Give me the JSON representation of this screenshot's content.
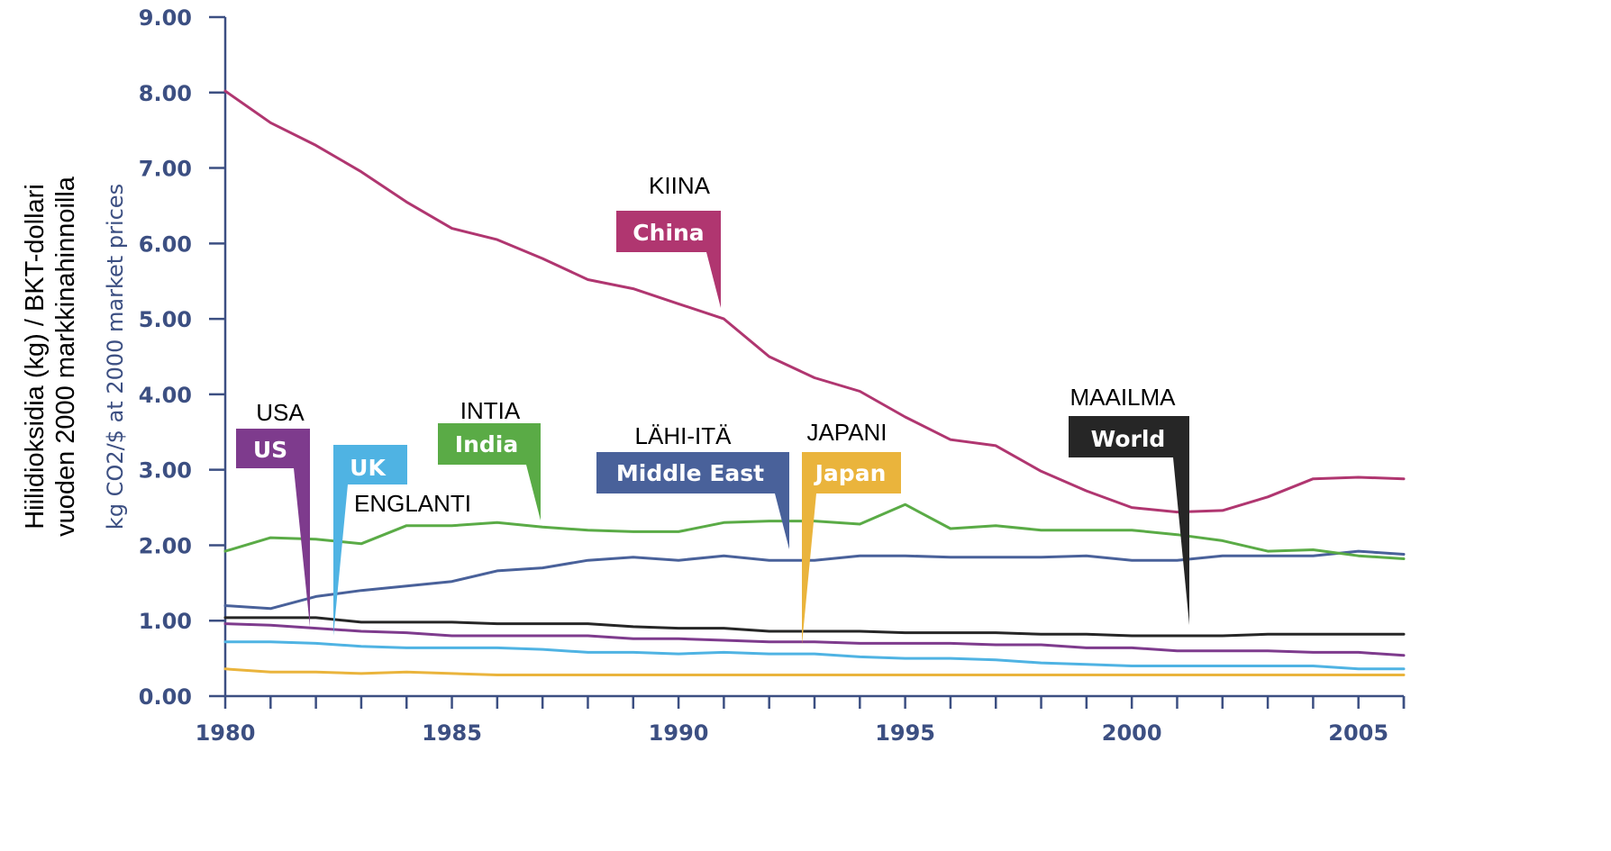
{
  "chart_data": {
    "type": "line",
    "ylabel": "kg CO2/$ at 2000 market prices",
    "ylabel_fi_line1": "Hiilidioksidia (kg) / BKT-dollari",
    "ylabel_fi_line2": "vuoden 2000 markkinahinnoilla",
    "ylim": [
      0,
      9
    ],
    "xlim": [
      1980,
      2006
    ],
    "yticks": [
      "0.00",
      "1.00",
      "2.00",
      "3.00",
      "4.00",
      "5.00",
      "6.00",
      "7.00",
      "8.00",
      "9.00"
    ],
    "xticks": [
      "1980",
      "1985",
      "1990",
      "1995",
      "2000",
      "2005"
    ],
    "grid": false,
    "x": [
      1980,
      1981,
      1982,
      1983,
      1984,
      1985,
      1986,
      1987,
      1988,
      1989,
      1990,
      1991,
      1992,
      1993,
      1994,
      1995,
      1996,
      1997,
      1998,
      1999,
      2000,
      2001,
      2002,
      2003,
      2004,
      2005,
      2006
    ],
    "series": [
      {
        "name": "China",
        "label_fi": "KIINA",
        "color": "#b03670",
        "values": [
          8.02,
          7.6,
          7.3,
          6.95,
          6.55,
          6.2,
          6.05,
          5.8,
          5.52,
          5.4,
          5.2,
          5.0,
          4.5,
          4.22,
          4.04,
          3.7,
          3.4,
          3.32,
          2.98,
          2.72,
          2.5,
          2.44,
          2.46,
          2.64,
          2.88,
          2.9,
          2.88
        ]
      },
      {
        "name": "India",
        "label_fi": "INTIA",
        "color": "#5aab46",
        "values": [
          1.92,
          2.1,
          2.08,
          2.02,
          2.26,
          2.26,
          2.3,
          2.24,
          2.2,
          2.18,
          2.18,
          2.3,
          2.32,
          2.32,
          2.28,
          2.54,
          2.22,
          2.26,
          2.2,
          2.2,
          2.2,
          2.14,
          2.06,
          1.92,
          1.94,
          1.86,
          1.82
        ]
      },
      {
        "name": "Middle East",
        "label_fi": "LÄHI-ITÄ",
        "color": "#49619a",
        "values": [
          1.2,
          1.16,
          1.32,
          1.4,
          1.46,
          1.52,
          1.66,
          1.7,
          1.8,
          1.84,
          1.8,
          1.86,
          1.8,
          1.8,
          1.86,
          1.86,
          1.84,
          1.84,
          1.84,
          1.86,
          1.8,
          1.8,
          1.86,
          1.86,
          1.86,
          1.92,
          1.88
        ]
      },
      {
        "name": "World",
        "label_fi": "MAAILMA",
        "color": "#262626",
        "values": [
          1.04,
          1.04,
          1.04,
          0.98,
          0.98,
          0.98,
          0.96,
          0.96,
          0.96,
          0.92,
          0.9,
          0.9,
          0.86,
          0.86,
          0.86,
          0.84,
          0.84,
          0.84,
          0.82,
          0.82,
          0.8,
          0.8,
          0.8,
          0.82,
          0.82,
          0.82,
          0.82
        ]
      },
      {
        "name": "US",
        "label_fi": "USA",
        "color": "#7e3b8d",
        "values": [
          0.96,
          0.94,
          0.9,
          0.86,
          0.84,
          0.8,
          0.8,
          0.8,
          0.8,
          0.76,
          0.76,
          0.74,
          0.72,
          0.72,
          0.7,
          0.7,
          0.7,
          0.68,
          0.68,
          0.64,
          0.64,
          0.6,
          0.6,
          0.6,
          0.58,
          0.58,
          0.54
        ]
      },
      {
        "name": "UK",
        "label_fi": "ENGLANTI",
        "color": "#4fb3e3",
        "values": [
          0.72,
          0.72,
          0.7,
          0.66,
          0.64,
          0.64,
          0.64,
          0.62,
          0.58,
          0.58,
          0.56,
          0.58,
          0.56,
          0.56,
          0.52,
          0.5,
          0.5,
          0.48,
          0.44,
          0.42,
          0.4,
          0.4,
          0.4,
          0.4,
          0.4,
          0.36,
          0.36
        ]
      },
      {
        "name": "Japan",
        "label_fi": "JAPANI",
        "color": "#eab43c",
        "values": [
          0.36,
          0.32,
          0.32,
          0.3,
          0.32,
          0.3,
          0.28,
          0.28,
          0.28,
          0.28,
          0.28,
          0.28,
          0.28,
          0.28,
          0.28,
          0.28,
          0.28,
          0.28,
          0.28,
          0.28,
          0.28,
          0.28,
          0.28,
          0.28,
          0.28,
          0.28,
          0.28
        ]
      }
    ]
  }
}
